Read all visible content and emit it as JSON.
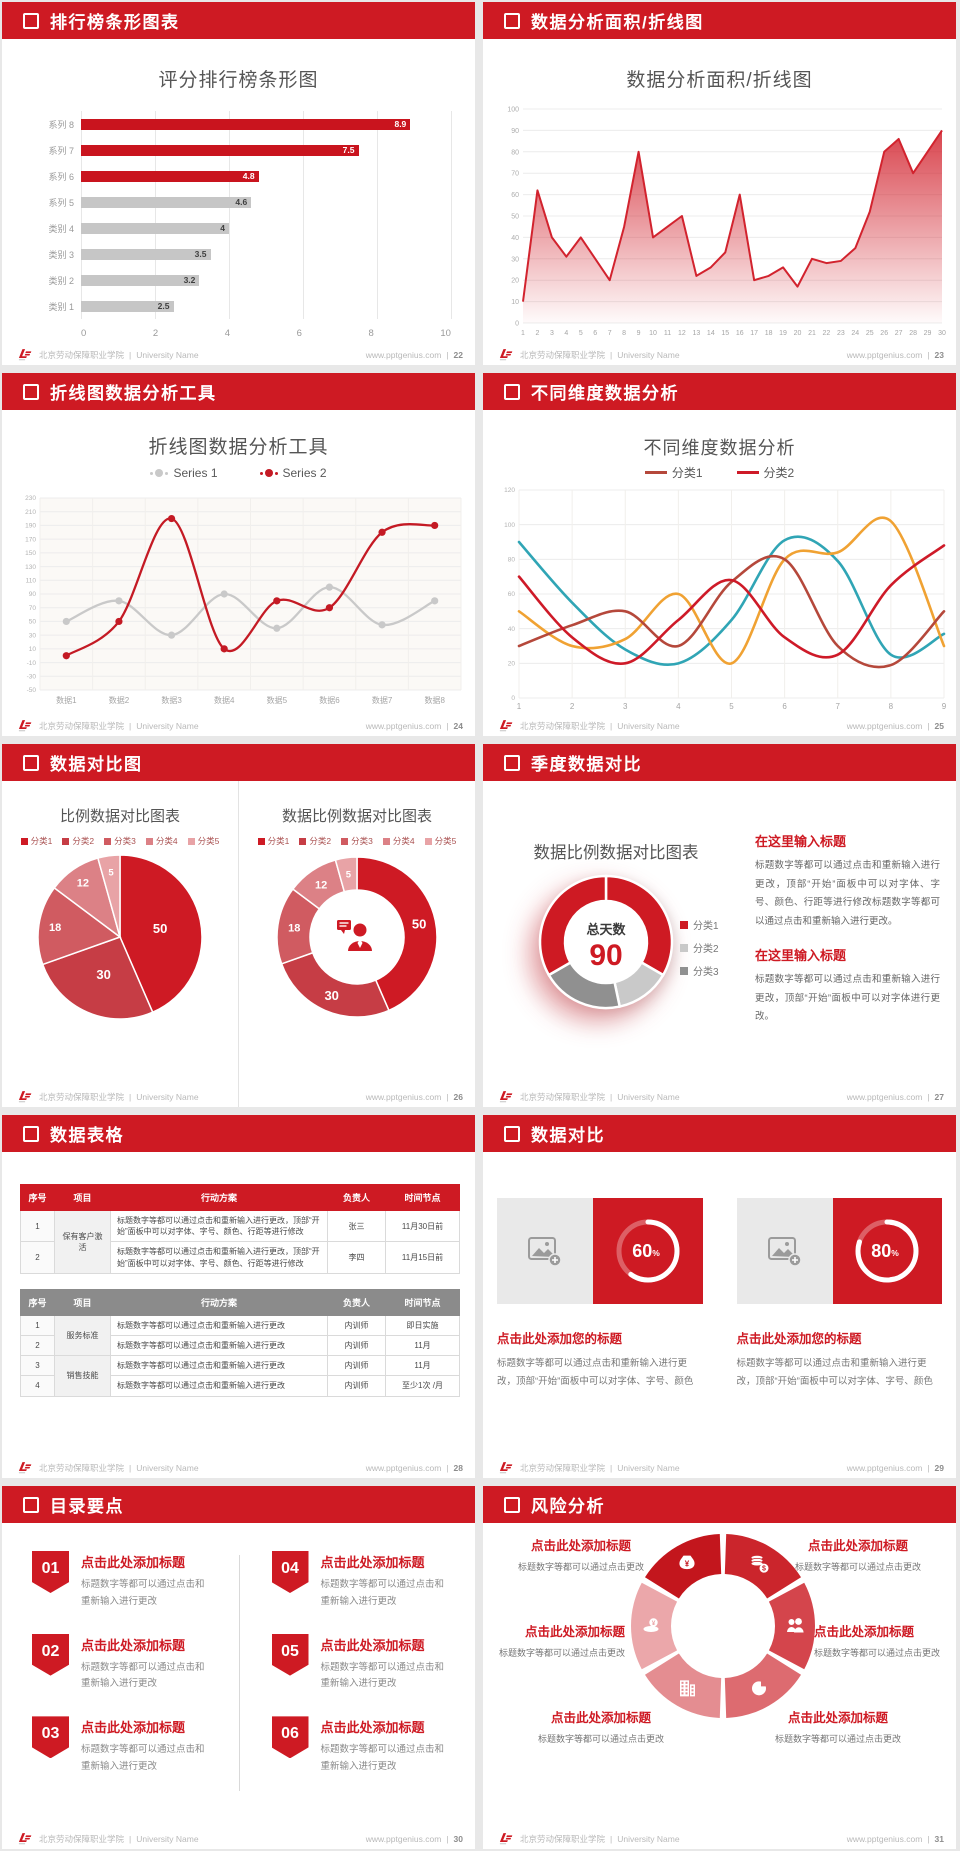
{
  "accent": "#ce1a23",
  "page_bg": "#e8e8e8",
  "footer": {
    "school": "北京劳动保障职业学院",
    "sep": "|",
    "university": "University Name",
    "site": "www.pptgenius.com",
    "divider": "|"
  },
  "slides": [
    {
      "header": "排行榜条形图表",
      "page": "22"
    },
    {
      "header": "数据分析面积/折线图",
      "page": "23"
    },
    {
      "header": "折线图数据分析工具",
      "page": "24"
    },
    {
      "header": "不同维度数据分析",
      "page": "25"
    },
    {
      "header": "数据对比图",
      "page": "26"
    },
    {
      "header": "季度数据对比",
      "page": "27",
      "blocks": [
        {
          "title": "在这里输入标题",
          "body": "标题数字等都可以通过点击和重新输入进行更改，顶部“开始”面板中可以对字体、字号、颜色、行距等进行修改标题数字等都可以通过点击和重新输入进行更改。"
        },
        {
          "title": "在这里输入标题",
          "body": "标题数字等都可以通过点击和重新输入进行更改，顶部“开始”面板中可以对字体进行更改。"
        }
      ]
    },
    {
      "header": "数据表格",
      "page": "28",
      "tables": [
        {
          "header_bg": "#ce1a23",
          "columns": [
            "序号",
            "项目",
            "行动方案",
            "负责人",
            "时间节点"
          ],
          "rows": [
            {
              "num": "1",
              "item": "保有客户激活",
              "item_span": 2,
              "action": "标题数字等都可以通过点击和重新输入进行更改，顶部“开始”面板中可以对字体、字号、颜色、行距等进行修改",
              "resp": "张三",
              "time": "11月30日前"
            },
            {
              "num": "2",
              "action": "标题数字等都可以通过点击和重新输入进行更改，顶部“开始”面板中可以对字体、字号、颜色、行距等进行修改",
              "resp": "李四",
              "time": "11月15日前"
            }
          ]
        },
        {
          "header_bg": "#8b8b8b",
          "columns": [
            "序号",
            "项目",
            "行动方案",
            "负责人",
            "时间节点"
          ],
          "rows": [
            {
              "num": "1",
              "item": "服务标准",
              "item_span": 2,
              "action": "标题数字等都可以通过点击和重新输入进行更改",
              "resp": "内训师",
              "time": "即日实施"
            },
            {
              "num": "2",
              "action": "标题数字等都可以通过点击和重新输入进行更改",
              "resp": "内训师",
              "time": "11月"
            },
            {
              "num": "3",
              "item": "销售技能",
              "item_span": 2,
              "action": "标题数字等都可以通过点击和重新输入进行更改",
              "resp": "内训师",
              "time": "11月"
            },
            {
              "num": "4",
              "action": "标题数字等都可以通过点击和重新输入进行更改",
              "resp": "内训师",
              "time": "至少1次 /月"
            }
          ]
        }
      ]
    },
    {
      "header": "数据对比",
      "page": "29",
      "cards": [
        {
          "icon": "image-placeholder-icon",
          "title": "点击此处添加您的标题",
          "body": "标题数字等都可以通过点击和重新输入进行更改，顶部“开始”面板中可以对字体、字号、颜色"
        },
        {
          "icon": "image-placeholder-icon",
          "title": "点击此处添加您的标题",
          "body": "标题数字等都可以通过点击和重新输入进行更改，顶部“开始”面板中可以对字体、字号、颜色"
        }
      ]
    },
    {
      "header": "目录要点",
      "page": "30",
      "items": [
        {
          "num": "01",
          "title": "点击此处添加标题",
          "body": "标题数字等都可以通过点击和重新输入进行更改"
        },
        {
          "num": "02",
          "title": "点击此处添加标题",
          "body": "标题数字等都可以通过点击和重新输入进行更改"
        },
        {
          "num": "03",
          "title": "点击此处添加标题",
          "body": "标题数字等都可以通过点击和重新输入进行更改"
        },
        {
          "num": "04",
          "title": "点击此处添加标题",
          "body": "标题数字等都可以通过点击和重新输入进行更改"
        },
        {
          "num": "05",
          "title": "点击此处添加标题",
          "body": "标题数字等都可以通过点击和重新输入进行更改"
        },
        {
          "num": "06",
          "title": "点击此处添加标题",
          "body": "标题数字等都可以通过点击和重新输入进行更改"
        }
      ]
    },
    {
      "header": "风险分析",
      "page": "31",
      "wheel": {
        "colors": [
          "#c3161d",
          "#cb252c",
          "#d4454c",
          "#dd6b70",
          "#e48d91",
          "#eba7aa"
        ],
        "icons": [
          "money-bag-icon",
          "coins-icon",
          "people-icon",
          "pie-chart-icon",
          "building-icon",
          "cash-cloud-icon"
        ],
        "items": [
          {
            "pos": "tl",
            "title": "点击此处添加标题",
            "body": "标题数字等都可以通过点击更改"
          },
          {
            "pos": "tr",
            "title": "点击此处添加标题",
            "body": "标题数字等都可以通过点击更改"
          },
          {
            "pos": "l",
            "title": "点击此处添加标题",
            "body": "标题数字等都可以通过点击更改"
          },
          {
            "pos": "r",
            "title": "点击此处添加标题",
            "body": "标题数字等都可以通过点击更改"
          },
          {
            "pos": "bl",
            "title": "点击此处添加标题",
            "body": "标题数字等都可以通过点击更改"
          },
          {
            "pos": "br",
            "title": "点击此处添加标题",
            "body": "标题数字等都可以通过点击更改"
          }
        ]
      }
    }
  ],
  "chart_data": [
    {
      "type": "bar-h",
      "title": "评分排行榜条形图",
      "categories": [
        "系列 8",
        "系列 7",
        "系列 6",
        "系列 5",
        "类别 4",
        "类别 3",
        "类别 2",
        "类别 1"
      ],
      "values": [
        8.9,
        7.5,
        4.8,
        4.6,
        4,
        3.5,
        3.2,
        2.5
      ],
      "bar_colors": [
        "#c9141e",
        "#c9141e",
        "#c9141e",
        "#c6c6c6",
        "#c6c6c6",
        "#c6c6c6",
        "#c6c6c6",
        "#c6c6c6"
      ],
      "xlim": [
        0,
        10
      ],
      "xticks": [
        0,
        2,
        4,
        6,
        8,
        10
      ],
      "grid": true
    },
    {
      "type": "area",
      "title": "数据分析面积/折线图",
      "x": [
        1,
        2,
        3,
        4,
        5,
        6,
        7,
        8,
        9,
        10,
        11,
        12,
        13,
        14,
        15,
        16,
        17,
        18,
        19,
        20,
        21,
        22,
        23,
        24,
        25,
        26,
        27,
        28,
        29,
        30
      ],
      "values": [
        10,
        62,
        40,
        31,
        40,
        30,
        20,
        45,
        80,
        40,
        45,
        50,
        22,
        26,
        33,
        60,
        20,
        22,
        26,
        17,
        30,
        28,
        29,
        35,
        52,
        80,
        86,
        70,
        80,
        90
      ],
      "ylim": [
        0,
        100
      ],
      "ystep": 10,
      "color": "#d2232e",
      "grid": true
    },
    {
      "type": "line",
      "title": "折线图数据分析工具",
      "categories": [
        "数据1",
        "数据2",
        "数据3",
        "数据4",
        "数据5",
        "数据6",
        "数据7",
        "数据8"
      ],
      "ylim": [
        -50,
        230
      ],
      "ystep": 20,
      "markers": true,
      "smooth": true,
      "plot_bg": "#fbf9f6",
      "layout": {
        "ml": 30,
        "mb": 18
      },
      "legend_style": "dot",
      "legend_entries": [
        {
          "label": "Series 1",
          "color": "#c9c9c9"
        },
        {
          "label": "Series 2",
          "color": "#c41a24"
        }
      ],
      "series": [
        {
          "name": "Series 1",
          "color": "#c9c9c9",
          "values": [
            50,
            80,
            30,
            90,
            40,
            100,
            45,
            80
          ]
        },
        {
          "name": "Series 2",
          "color": "#c41a24",
          "values": [
            0,
            50,
            200,
            10,
            80,
            70,
            180,
            190
          ]
        }
      ]
    },
    {
      "type": "line",
      "title": "不同维度数据分析",
      "x": [
        1,
        2,
        3,
        4,
        5,
        6,
        7,
        8,
        9
      ],
      "ylim": [
        0,
        120
      ],
      "ystep": 20,
      "markers": false,
      "smooth": true,
      "layout": {
        "ml": 26,
        "mb": 16
      },
      "legend_style": "line",
      "legend_entries": [
        {
          "label": "分类1",
          "color": "#b5483b"
        },
        {
          "label": "分类2",
          "color": "#ce1a28"
        }
      ],
      "series": [
        {
          "name": "",
          "color": "#30a5b5",
          "values": [
            90,
            55,
            28,
            20,
            45,
            91,
            79,
            25,
            37
          ]
        },
        {
          "name": "",
          "color": "#f0a233",
          "values": [
            50,
            30,
            34,
            60,
            20,
            80,
            84,
            102,
            30
          ]
        },
        {
          "name": "分类1",
          "color": "#b5483b",
          "values": [
            30,
            42,
            50,
            30,
            67,
            80,
            30,
            19,
            50
          ]
        },
        {
          "name": "分类2",
          "color": "#ce1a28",
          "values": [
            70,
            35,
            20,
            45,
            68,
            35,
            25,
            65,
            88
          ]
        }
      ]
    },
    {
      "type": "pie",
      "title": "比例数据对比图表",
      "labels": [
        "分类1",
        "分类2",
        "分类3",
        "分类4",
        "分类5"
      ],
      "values": [
        50,
        30,
        18,
        12,
        5
      ],
      "colors": [
        "#ce1a24",
        "#c63d45",
        "#d05b61",
        "#dc8186",
        "#e8a3a6"
      ],
      "legend_entries": [
        {
          "label": "分类1",
          "color": "#ce1a24"
        },
        {
          "label": "分类2",
          "color": "#c63d45"
        },
        {
          "label": "分类3",
          "color": "#d05b61"
        },
        {
          "label": "分类4",
          "color": "#dc8186"
        },
        {
          "label": "分类5",
          "color": "#e8a3a6"
        }
      ]
    },
    {
      "type": "donut",
      "title": "数据比例数据对比图表",
      "labels": [
        "分类1",
        "分类2",
        "分类3",
        "分类4",
        "分类5"
      ],
      "values": [
        50,
        30,
        18,
        12,
        5
      ],
      "colors": [
        "#ce1a24",
        "#c63d45",
        "#d05b61",
        "#dc8186",
        "#e8a3a6"
      ],
      "center_icon": "person-chat-icon",
      "legend_entries": [
        {
          "label": "分类1",
          "color": "#ce1a24"
        },
        {
          "label": "分类2",
          "color": "#c63d45"
        },
        {
          "label": "分类3",
          "color": "#d05b61"
        },
        {
          "label": "分类4",
          "color": "#dc8186"
        },
        {
          "label": "分类5",
          "color": "#e8a3a6"
        }
      ]
    },
    {
      "type": "donut-center",
      "title": "数据比例数据对比图表",
      "center_label": "总天数",
      "center_value": "90",
      "total": 90,
      "labels": [
        "分类1",
        "分类2",
        "分类3"
      ],
      "values": [
        60,
        12,
        18
      ],
      "colors": [
        "#ce1a23",
        "#c9c9c9",
        "#909090"
      ],
      "legend_entries": [
        {
          "label": "分类1",
          "color": "#ce1a23"
        },
        {
          "label": "分类2",
          "color": "#c9c9c9"
        },
        {
          "label": "分类3",
          "color": "#909090"
        }
      ]
    },
    {
      "type": "ring",
      "value": 60,
      "suffix": "%"
    },
    {
      "type": "ring",
      "value": 80,
      "suffix": "%"
    }
  ]
}
